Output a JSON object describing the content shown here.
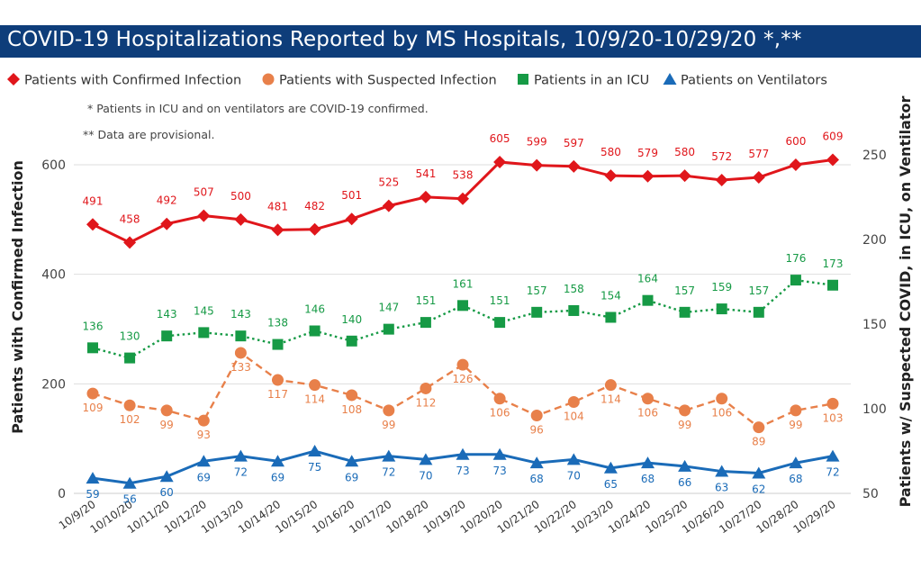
{
  "title": "COVID-19 Hospitalizations Reported by MS Hospitals, 10/9/20-10/29/20 *,**",
  "notes": [
    "* Patients in ICU and on ventilators are COVID-19 confirmed.",
    "** Data are provisional."
  ],
  "colors": {
    "title_bg": "#0e3d7a",
    "confirmed": "#e0161b",
    "suspected": "#e8804a",
    "icu": "#169a45",
    "ventilator": "#1a6bb8"
  },
  "chart_data": {
    "type": "line",
    "x": [
      "10/9/20",
      "10/10/20",
      "10/11/20",
      "10/12/20",
      "10/13/20",
      "10/14/20",
      "10/15/20",
      "10/16/20",
      "10/17/20",
      "10/18/20",
      "10/19/20",
      "10/20/20",
      "10/21/20",
      "10/22/20",
      "10/23/20",
      "10/24/20",
      "10/25/20",
      "10/26/20",
      "10/27/20",
      "10/28/20",
      "10/29/20"
    ],
    "ylabel_left": "Patients with Confirmed Infection",
    "ylabel_right": "Patients w/ Suspected COVID, in ICU, on Ventilator",
    "ylim_left": [
      0,
      600
    ],
    "ylim_right": [
      50,
      250
    ],
    "yticks_left": [
      0,
      200,
      400,
      600
    ],
    "yticks_right": [
      50,
      100,
      150,
      200,
      250
    ],
    "legend_position": "top",
    "grid": "horizontal",
    "series": [
      {
        "name": "Patients with Confirmed Infection",
        "axis": "left",
        "marker": "diamond",
        "style": "solid",
        "color": "#e0161b",
        "values": [
          491,
          458,
          492,
          507,
          500,
          481,
          482,
          501,
          525,
          541,
          538,
          605,
          599,
          597,
          580,
          579,
          580,
          572,
          577,
          600,
          609
        ]
      },
      {
        "name": "Patients with Suspected Infection",
        "axis": "right",
        "marker": "circle",
        "style": "dashed",
        "color": "#e8804a",
        "values": [
          109,
          102,
          99,
          93,
          133,
          117,
          114,
          108,
          99,
          112,
          126,
          106,
          96,
          104,
          114,
          106,
          99,
          106,
          89,
          99,
          103
        ]
      },
      {
        "name": "Patients in an ICU",
        "axis": "right",
        "marker": "square",
        "style": "dotted",
        "color": "#169a45",
        "values": [
          136,
          130,
          143,
          145,
          143,
          138,
          146,
          140,
          147,
          151,
          161,
          151,
          157,
          158,
          154,
          164,
          157,
          159,
          157,
          176,
          173
        ]
      },
      {
        "name": "Patients on Ventilators",
        "axis": "right",
        "marker": "triangle",
        "style": "solid",
        "color": "#1a6bb8",
        "values": [
          59,
          56,
          60,
          69,
          72,
          69,
          75,
          69,
          72,
          70,
          73,
          73,
          68,
          70,
          65,
          68,
          66,
          63,
          62,
          68,
          72
        ]
      }
    ]
  }
}
